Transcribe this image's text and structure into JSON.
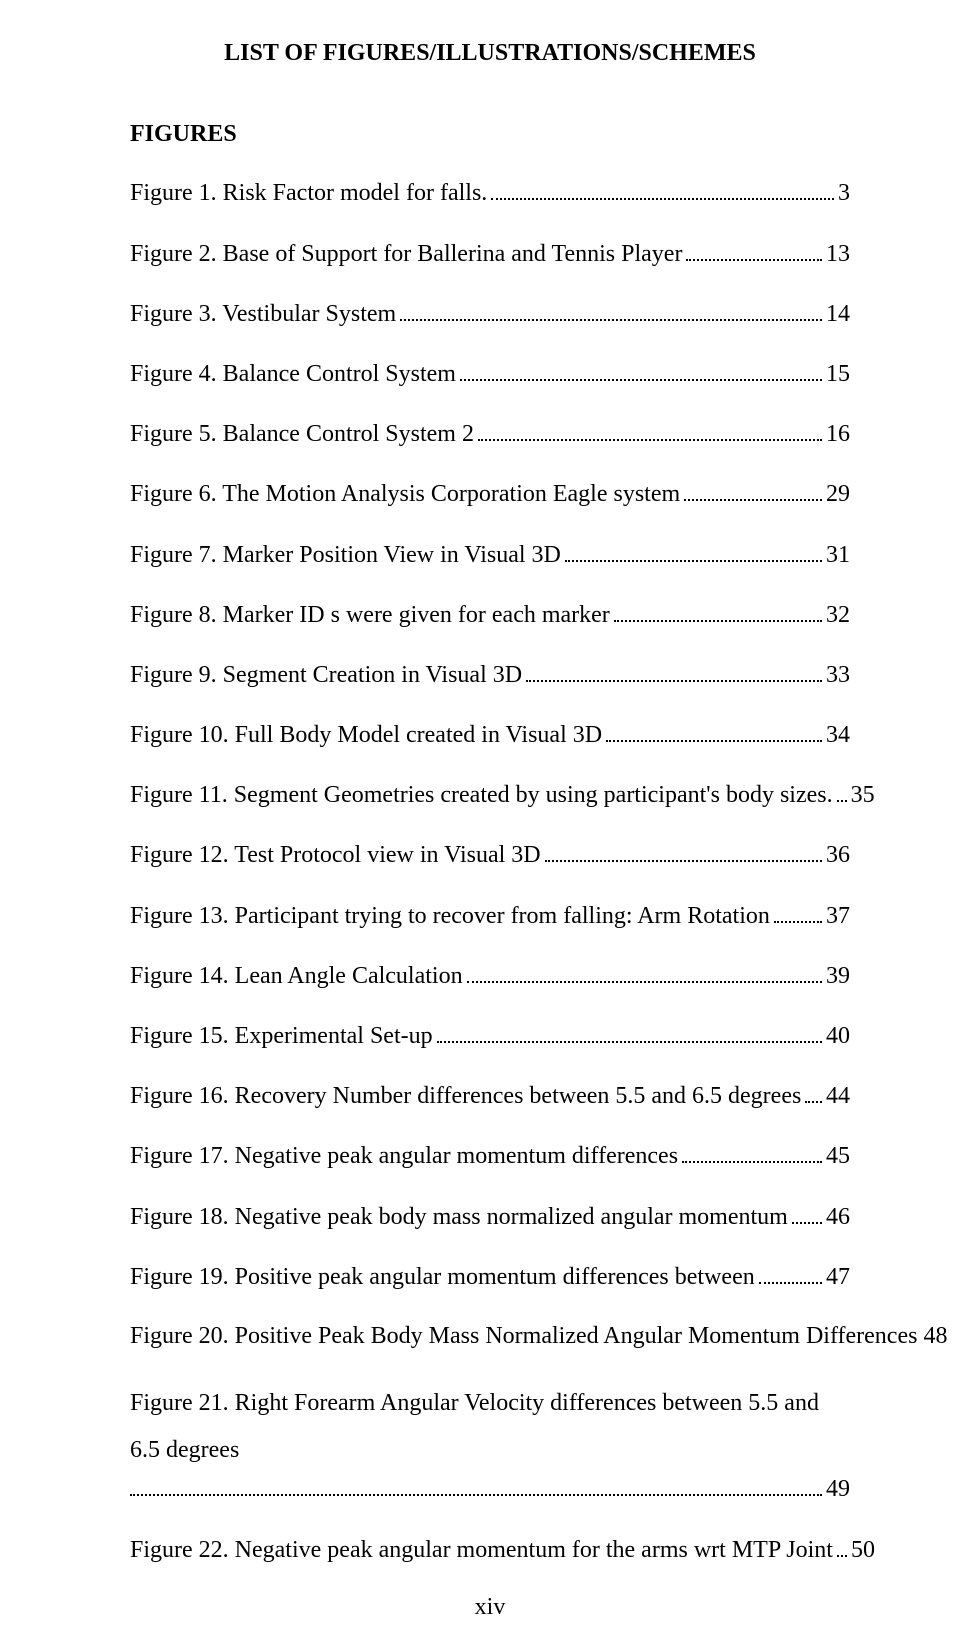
{
  "title": "LIST OF FIGURES/ILLUSTRATIONS/SCHEMES",
  "section_heading": "FIGURES",
  "entries": [
    {
      "label": "Figure 1. Risk Factor model for falls.",
      "page": "3"
    },
    {
      "label": "Figure 2. Base of Support for Ballerina and Tennis Player",
      "page": "13"
    },
    {
      "label": "Figure 3. Vestibular System",
      "page": "14"
    },
    {
      "label": "Figure 4. Balance Control System",
      "page": "15"
    },
    {
      "label": "Figure 5. Balance Control System 2",
      "page": "16"
    },
    {
      "label": "Figure 6. The Motion Analysis Corporation Eagle system",
      "page": "29"
    },
    {
      "label": "Figure 7. Marker Position View in Visual 3D",
      "page": "31"
    },
    {
      "label": "Figure 8. Marker ID s were given for each marker",
      "page": "32"
    },
    {
      "label": "Figure 9. Segment Creation in Visual 3D",
      "page": "33"
    },
    {
      "label": "Figure 10. Full Body Model created in Visual 3D",
      "page": "34"
    },
    {
      "label": "Figure 11. Segment Geometries created by using participant's body sizes.",
      "page": "35"
    },
    {
      "label": "Figure 12. Test Protocol view in Visual 3D",
      "page": "36"
    },
    {
      "label": "Figure 13. Participant trying to recover from falling: Arm Rotation",
      "page": "37"
    },
    {
      "label": "Figure 14. Lean Angle Calculation",
      "page": "39"
    },
    {
      "label": "Figure 15. Experimental Set-up",
      "page": "40"
    },
    {
      "label": "Figure 16. Recovery Number differences between 5.5 and 6.5 degrees",
      "page": "44"
    },
    {
      "label": "Figure 17. Negative peak angular momentum differences",
      "page": "45"
    },
    {
      "label": "Figure 18. Negative peak body mass normalized angular momentum",
      "page": "46"
    },
    {
      "label": "Figure 19. Positive peak angular momentum differences between",
      "page": "47"
    },
    {
      "label": "Figure 20. Positive Peak Body Mass Normalized Angular Momentum Differences",
      "page": "48",
      "nodots": true
    },
    {
      "label": "Figure 21. Right Forearm Angular Velocity differences between 5.5 and 6.5 degrees",
      "page": "49",
      "wrap": true
    },
    {
      "label": "Figure 22. Negative peak angular momentum for the arms wrt MTP Joint",
      "page": "50"
    }
  ],
  "page_number": "xiv"
}
